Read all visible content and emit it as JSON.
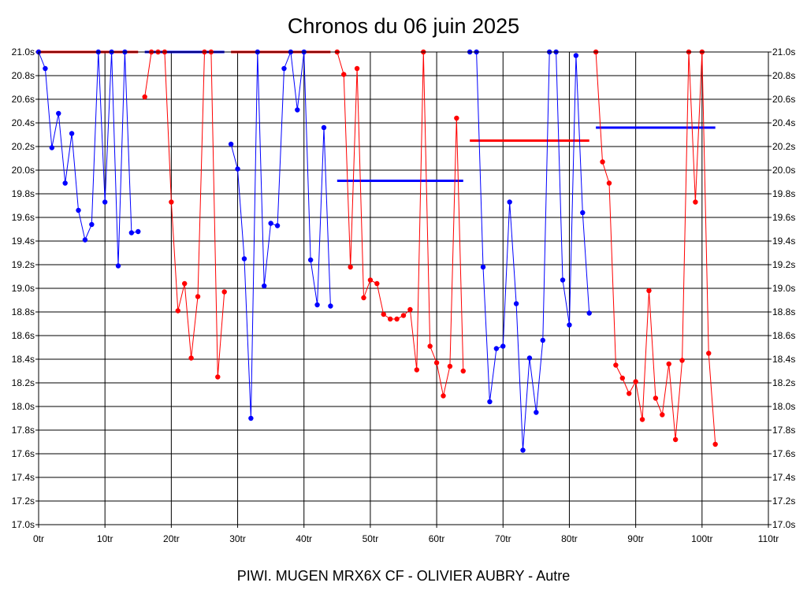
{
  "chart_data": {
    "type": "line",
    "title": "Chronos du 06 juin 2025",
    "subtitle": "PIWI. MUGEN MRX6X CF - OLIVIER AUBRY - Autre",
    "x_unit": "tr",
    "y_unit": "s",
    "xlim": [
      0,
      110
    ],
    "ylim": [
      17.0,
      21.0
    ],
    "x_ticks": [
      "0tr",
      "10tr",
      "20tr",
      "30tr",
      "40tr",
      "50tr",
      "60tr",
      "70tr",
      "80tr",
      "90tr",
      "100tr",
      "110tr"
    ],
    "y_ticks": [
      "17.0s",
      "17.2s",
      "17.4s",
      "17.6s",
      "17.8s",
      "18.0s",
      "18.2s",
      "18.4s",
      "18.6s",
      "18.8s",
      "19.0s",
      "19.2s",
      "19.4s",
      "19.6s",
      "19.8s",
      "20.0s",
      "20.2s",
      "20.4s",
      "20.6s",
      "20.8s",
      "21.0s"
    ],
    "grid": true,
    "colors": {
      "red": "#ff0000",
      "blue": "#0000ff",
      "grid": "#000000"
    },
    "segments": [
      {
        "color": "red",
        "x": [
          0
        ],
        "y": [
          21.0
        ]
      },
      {
        "color": "blue",
        "x": [
          0,
          1,
          2,
          3,
          4,
          5,
          6,
          7,
          8,
          9,
          10,
          11,
          12,
          13,
          14,
          15
        ],
        "y": [
          21.0,
          20.86,
          20.19,
          20.48,
          19.89,
          20.31,
          19.66,
          19.41,
          19.54,
          21.0,
          19.73,
          21.0,
          19.19,
          21.0,
          19.47,
          19.48
        ]
      },
      {
        "color": "red",
        "x": [
          16,
          17,
          18,
          19,
          20,
          21,
          22,
          23,
          24,
          25,
          26,
          27,
          28
        ],
        "y": [
          20.62,
          21.0,
          21.0,
          21.0,
          19.73,
          18.81,
          19.04,
          18.41,
          18.93,
          21.0,
          21.0,
          18.25,
          18.97
        ]
      },
      {
        "color": "blue",
        "x": [
          29,
          30,
          31,
          32,
          33,
          34,
          35,
          36,
          37,
          38,
          39,
          40,
          41,
          42,
          43,
          44
        ],
        "y": [
          20.22,
          20.01,
          19.25,
          17.9,
          21.0,
          19.02,
          19.55,
          19.53,
          20.86,
          21.0,
          20.51,
          21.0,
          19.24,
          18.86,
          20.36,
          18.85
        ]
      },
      {
        "color": "red",
        "x": [
          45,
          46,
          47,
          48,
          49,
          50,
          51,
          52,
          53,
          54,
          55,
          56,
          57,
          58,
          59,
          60,
          61,
          62,
          63,
          64
        ],
        "y": [
          21.0,
          20.81,
          19.18,
          20.86,
          18.92,
          19.07,
          19.04,
          18.78,
          18.74,
          18.74,
          18.77,
          18.82,
          18.31,
          21.0,
          18.51,
          18.37,
          18.09,
          18.34,
          20.44,
          18.3
        ]
      },
      {
        "color": "blue",
        "x": [
          65,
          66,
          67,
          68,
          69,
          70,
          71,
          72,
          73,
          74,
          75,
          76,
          77,
          78,
          79,
          80,
          81,
          82,
          83
        ],
        "y": [
          21.0,
          21.0,
          19.18,
          18.04,
          18.49,
          18.51,
          19.73,
          18.87,
          17.63,
          18.41,
          17.95,
          18.56,
          21.0,
          21.0,
          19.07,
          18.69,
          20.97,
          19.64,
          18.79
        ]
      },
      {
        "color": "red",
        "x": [
          84,
          85,
          86,
          87,
          88,
          89,
          90,
          91,
          92,
          93,
          94,
          95,
          96,
          97,
          98,
          99,
          100,
          101,
          102
        ],
        "y": [
          21.0,
          20.07,
          19.89,
          18.35,
          18.24,
          18.11,
          18.21,
          17.89,
          18.98,
          18.07,
          17.93,
          18.36,
          17.72,
          18.39,
          21.0,
          19.73,
          21.0,
          18.45,
          17.68
        ]
      }
    ],
    "averages": [
      {
        "color": "red",
        "x_start": 0,
        "x_end": 15,
        "value": 21.0
      },
      {
        "color": "blue",
        "x_start": 16,
        "x_end": 28,
        "value": 21.0
      },
      {
        "color": "red",
        "x_start": 29,
        "x_end": 44,
        "value": 21.0
      },
      {
        "color": "blue",
        "x_start": 45,
        "x_end": 64,
        "value": 19.91
      },
      {
        "color": "red",
        "x_start": 65,
        "x_end": 83,
        "value": 20.25
      },
      {
        "color": "blue",
        "x_start": 84,
        "x_end": 102,
        "value": 20.36
      }
    ]
  }
}
